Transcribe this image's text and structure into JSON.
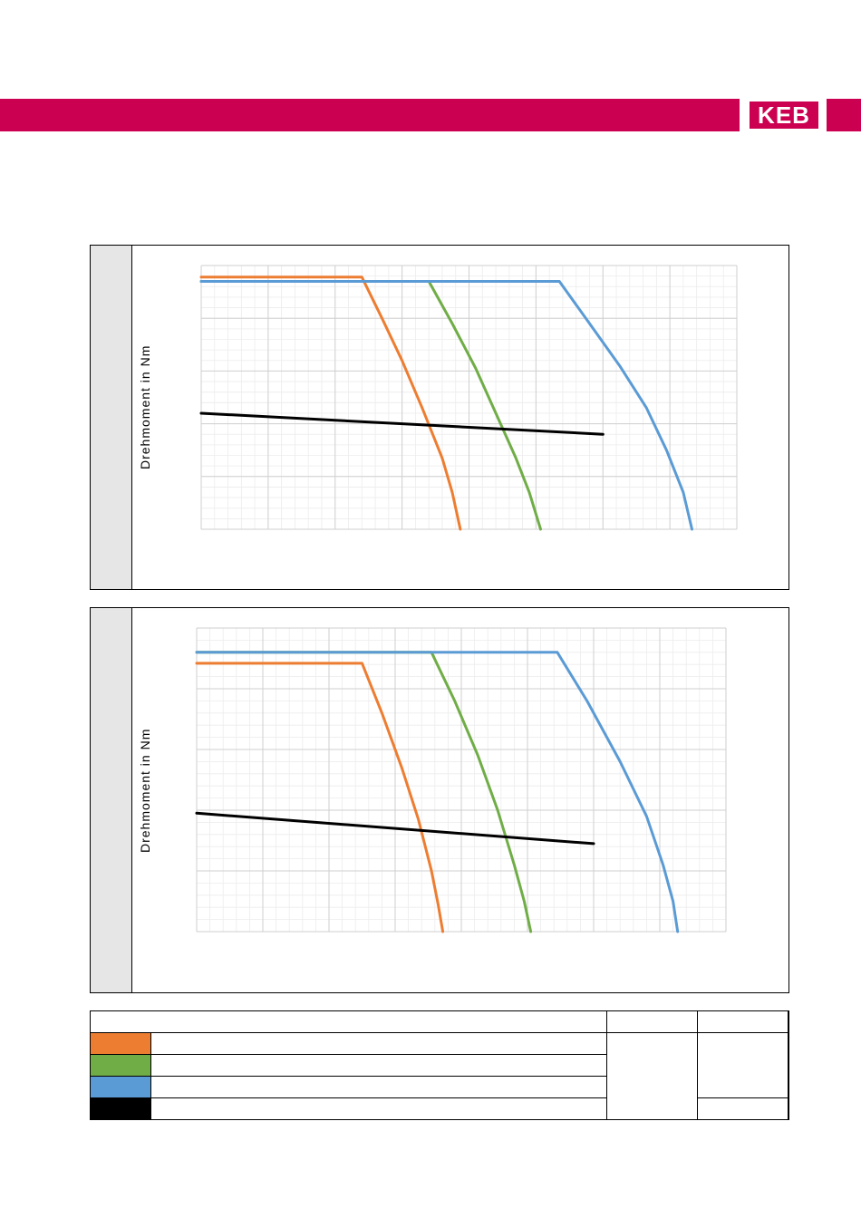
{
  "header": {
    "logo_text": "KEB",
    "brand_color": "#cc0050"
  },
  "charts_common": {
    "ylabel": "Drehmoment in Nm"
  },
  "colors": {
    "orange": "#ed7d31",
    "green": "#70ad47",
    "blue": "#5b9bd5",
    "black": "#000000"
  },
  "chart_data": [
    {
      "type": "line",
      "title": "",
      "xlabel": "",
      "ylabel": "Drehmoment in Nm",
      "x_range": [
        0,
        8
      ],
      "y_range": [
        0,
        5
      ],
      "grid": true,
      "series": [
        {
          "color": "#ed7d31",
          "points": [
            [
              0,
              4.78
            ],
            [
              2.4,
              4.78
            ],
            [
              2.7,
              4.0
            ],
            [
              3.0,
              3.2
            ],
            [
              3.3,
              2.3
            ],
            [
              3.6,
              1.35
            ],
            [
              3.75,
              0.7
            ],
            [
              3.87,
              0.0
            ]
          ]
        },
        {
          "color": "#70ad47",
          "points": [
            [
              0,
              4.7
            ],
            [
              3.4,
              4.7
            ],
            [
              3.75,
              3.9
            ],
            [
              4.1,
              3.05
            ],
            [
              4.4,
              2.2
            ],
            [
              4.7,
              1.35
            ],
            [
              4.9,
              0.7
            ],
            [
              5.07,
              0.0
            ]
          ]
        },
        {
          "color": "#5b9bd5",
          "points": [
            [
              0,
              4.7
            ],
            [
              5.35,
              4.7
            ],
            [
              5.8,
              3.9
            ],
            [
              6.25,
              3.1
            ],
            [
              6.65,
              2.3
            ],
            [
              6.95,
              1.5
            ],
            [
              7.2,
              0.7
            ],
            [
              7.33,
              0.0
            ]
          ]
        },
        {
          "color": "#000000",
          "points": [
            [
              0,
              2.2
            ],
            [
              6.0,
              1.8
            ]
          ]
        }
      ]
    },
    {
      "type": "line",
      "title": "",
      "xlabel": "",
      "ylabel": "Drehmoment in Nm",
      "x_range": [
        0,
        8
      ],
      "y_range": [
        0,
        5
      ],
      "grid": true,
      "series": [
        {
          "color": "#ed7d31",
          "points": [
            [
              0,
              4.42
            ],
            [
              2.5,
              4.42
            ],
            [
              2.8,
              3.6
            ],
            [
              3.1,
              2.7
            ],
            [
              3.35,
              1.85
            ],
            [
              3.55,
              1.0
            ],
            [
              3.65,
              0.45
            ],
            [
              3.72,
              0.0
            ]
          ]
        },
        {
          "color": "#70ad47",
          "points": [
            [
              0,
              4.6
            ],
            [
              3.55,
              4.6
            ],
            [
              3.9,
              3.8
            ],
            [
              4.25,
              2.9
            ],
            [
              4.55,
              2.0
            ],
            [
              4.8,
              1.1
            ],
            [
              4.95,
              0.5
            ],
            [
              5.05,
              0.0
            ]
          ]
        },
        {
          "color": "#5b9bd5",
          "points": [
            [
              0,
              4.6
            ],
            [
              5.45,
              4.6
            ],
            [
              5.9,
              3.8
            ],
            [
              6.4,
              2.8
            ],
            [
              6.8,
              1.9
            ],
            [
              7.05,
              1.1
            ],
            [
              7.2,
              0.5
            ],
            [
              7.27,
              0.0
            ]
          ]
        },
        {
          "color": "#000000",
          "points": [
            [
              0,
              1.95
            ],
            [
              6.0,
              1.45
            ]
          ]
        }
      ]
    }
  ],
  "legend_table": {
    "swatches": [
      "#ed7d31",
      "#70ad47",
      "#5b9bd5",
      "#000000"
    ]
  }
}
